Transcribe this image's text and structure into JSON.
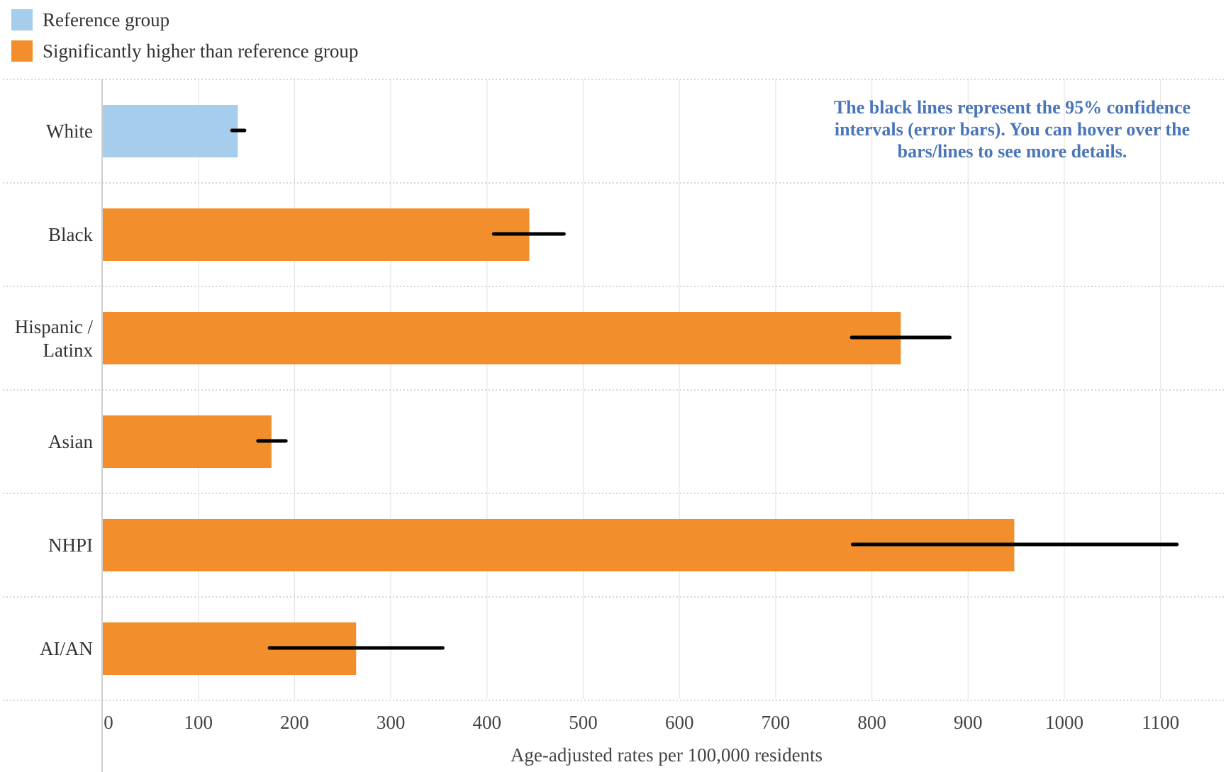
{
  "legend": {
    "items": [
      {
        "label": "Reference group",
        "color": "#a6cdeb"
      },
      {
        "label": "Significantly higher than reference group",
        "color": "#f28e2b"
      }
    ]
  },
  "note": "The black lines represent the 95% confidence intervals (error bars). You can hover over the bars/lines to see more details.",
  "chart_data": {
    "type": "bar",
    "orientation": "horizontal",
    "categories": [
      "White",
      "Black",
      "Hispanic / Latinx",
      "Asian",
      "NHPI",
      "AI/AN"
    ],
    "values": [
      141,
      444,
      830,
      176,
      948,
      264
    ],
    "ci_low": [
      135,
      407,
      779,
      162,
      780,
      174
    ],
    "ci_high": [
      148,
      480,
      881,
      191,
      1117,
      354
    ],
    "groups": [
      "Reference group",
      "Significantly higher than reference group",
      "Significantly higher than reference group",
      "Significantly higher than reference group",
      "Significantly higher than reference group",
      "Significantly higher than reference group"
    ],
    "colors": [
      "#a6cdeb",
      "#f28e2b",
      "#f28e2b",
      "#f28e2b",
      "#f28e2b",
      "#f28e2b"
    ],
    "xlabel": "Age-adjusted rates per 100,000 residents",
    "ylabel": "",
    "xlim": [
      0,
      1170
    ],
    "xticks": [
      0,
      100,
      200,
      300,
      400,
      500,
      600,
      700,
      800,
      900,
      1000,
      1100
    ],
    "grid": true,
    "legend_position": "top-left"
  }
}
